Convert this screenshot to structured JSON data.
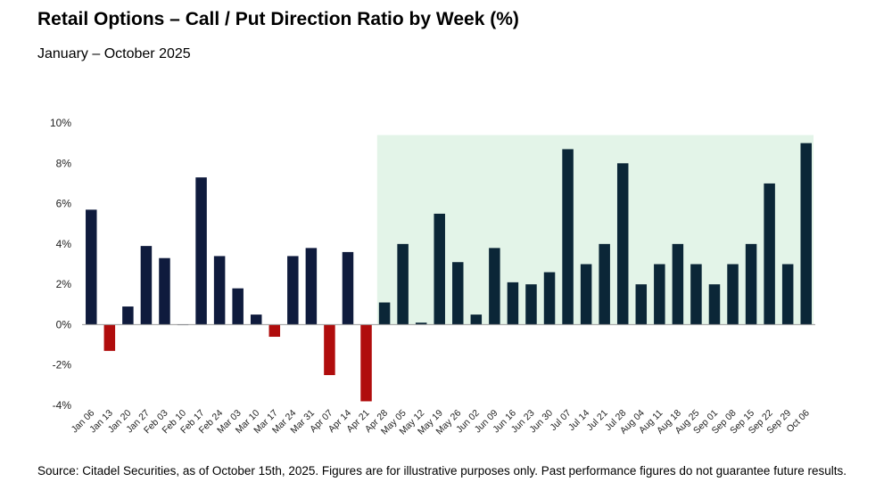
{
  "chart_data": {
    "type": "bar",
    "title": "Retail Options – Call / Put Direction Ratio by Week (%)",
    "subtitle": "January – October 2025",
    "xlabel": "",
    "ylabel": "",
    "ylim": [
      -4,
      10
    ],
    "yticks": [
      -4,
      -2,
      0,
      2,
      4,
      6,
      8,
      10
    ],
    "ytick_labels": [
      "-4%",
      "-2%",
      "0%",
      "2%",
      "4%",
      "6%",
      "8%",
      "10%"
    ],
    "categories": [
      "Jan 06",
      "Jan 13",
      "Jan 20",
      "Jan 27",
      "Feb 03",
      "Feb 10",
      "Feb 17",
      "Feb 24",
      "Mar 03",
      "Mar 10",
      "Mar 17",
      "Mar 24",
      "Mar 31",
      "Apr 07",
      "Apr 14",
      "Apr 21",
      "Apr 28",
      "May 05",
      "May 12",
      "May 19",
      "May 26",
      "Jun 02",
      "Jun 09",
      "Jun 16",
      "Jun 23",
      "Jun 30",
      "Jul 07",
      "Jul 14",
      "Jul 21",
      "Jul 28",
      "Aug 04",
      "Aug 11",
      "Aug 18",
      "Aug 25",
      "Sep 01",
      "Sep 08",
      "Sep 15",
      "Sep 22",
      "Sep 29",
      "Oct 06"
    ],
    "values": [
      5.7,
      -1.3,
      0.9,
      3.9,
      3.3,
      0.0,
      7.3,
      3.4,
      1.8,
      0.5,
      -0.6,
      3.4,
      3.8,
      -2.5,
      3.6,
      -3.8,
      1.1,
      4.0,
      0.1,
      5.5,
      3.1,
      0.5,
      3.8,
      2.1,
      2.0,
      2.6,
      8.7,
      3.0,
      4.0,
      8.0,
      2.0,
      3.0,
      4.0,
      3.0,
      2.0,
      3.0,
      4.0,
      7.0,
      3.0,
      9.0
    ],
    "highlight_range_start": "Apr 28",
    "highlight_range_end": "Oct 06",
    "grid": false,
    "legend": "none"
  },
  "colors": {
    "positive": "#0f1b3d",
    "negative": "#b00d0d",
    "highlight_bar": "#0b2637",
    "highlight_bg": "#e3f4e8"
  },
  "footnote": "Source: Citadel Securities, as of October 15th, 2025. Figures are for illustrative purposes only. Past performance figures do not guarantee future results."
}
